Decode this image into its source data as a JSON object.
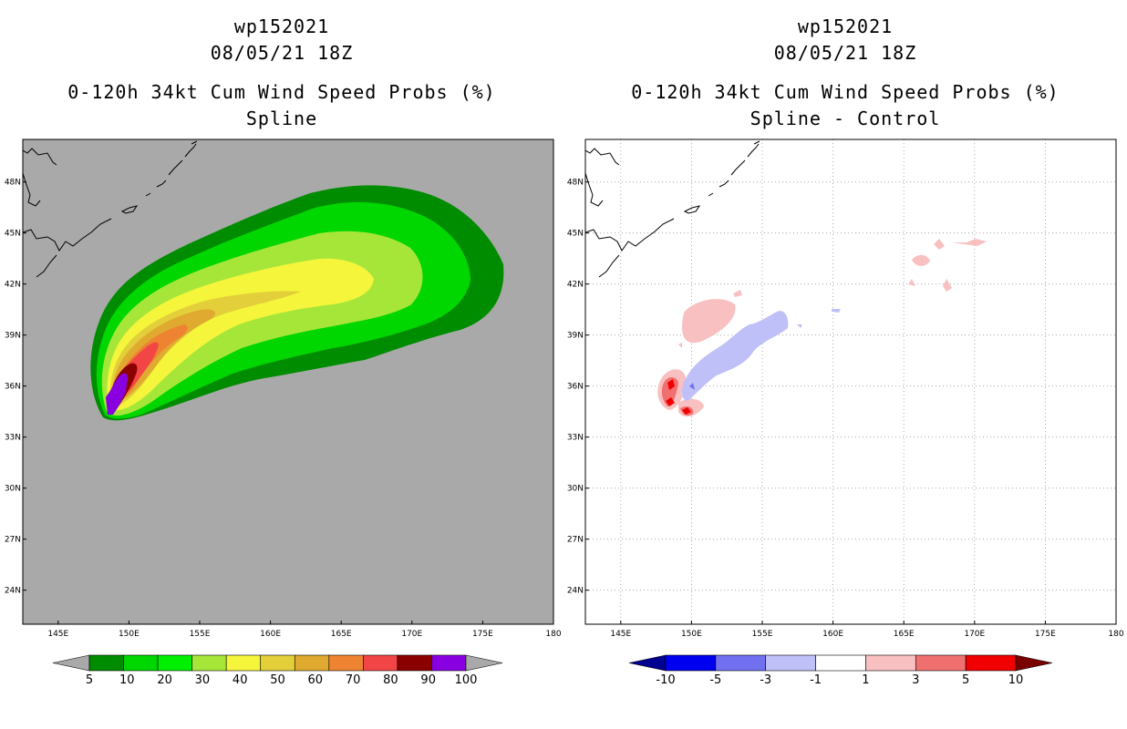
{
  "panels": [
    {
      "id": "left",
      "title_lines": [
        "wp152021",
        "08/05/21 18Z"
      ],
      "subtitle_lines": [
        "0-120h 34kt Cum Wind Speed Probs (%)",
        "Spline"
      ]
    },
    {
      "id": "right",
      "title_lines": [
        "wp152021",
        "08/05/21 18Z"
      ],
      "subtitle_lines": [
        "0-120h 34kt Cum Wind Speed Probs (%)",
        "Spline - Control"
      ]
    }
  ],
  "chart_data": [
    {
      "type": "heatmap",
      "title": "0-120h 34kt Cum Wind Speed Probs (%) Spline",
      "storm": "wp152021",
      "time": "08/05/21 18Z",
      "x_ticks": [
        "145E",
        "150E",
        "155E",
        "160E",
        "165E",
        "170E",
        "175E",
        "180"
      ],
      "x_values": [
        145,
        150,
        155,
        160,
        165,
        170,
        175,
        180
      ],
      "y_ticks": [
        "24N",
        "27N",
        "30N",
        "33N",
        "36N",
        "39N",
        "42N",
        "45N",
        "48N"
      ],
      "y_values": [
        24,
        27,
        30,
        33,
        36,
        39,
        42,
        45,
        48
      ],
      "xlim": [
        142.5,
        180
      ],
      "ylim": [
        22,
        50.5
      ],
      "background_color": "#a9a9a9",
      "colorbar": {
        "labels": [
          "5",
          "10",
          "20",
          "30",
          "40",
          "50",
          "60",
          "70",
          "80",
          "90",
          "100"
        ],
        "colors": [
          "#008c00",
          "#00d600",
          "#00ee00",
          "#a6e639",
          "#f5f53c",
          "#e3cf3a",
          "#e0aa31",
          "#ee8431",
          "#f24545",
          "#8b0000",
          "#8800e0"
        ],
        "end_colors": [
          "#a9a9a9",
          "#a9a9a9"
        ]
      }
    },
    {
      "type": "heatmap",
      "title": "0-120h 34kt Cum Wind Speed Probs (%) Spline - Control",
      "storm": "wp152021",
      "time": "08/05/21 18Z",
      "x_ticks": [
        "145E",
        "150E",
        "155E",
        "160E",
        "165E",
        "170E",
        "175E",
        "180"
      ],
      "x_values": [
        145,
        150,
        155,
        160,
        165,
        170,
        175,
        180
      ],
      "y_ticks": [
        "24N",
        "27N",
        "30N",
        "33N",
        "36N",
        "39N",
        "42N",
        "45N",
        "48N"
      ],
      "y_values": [
        24,
        27,
        30,
        33,
        36,
        39,
        42,
        45,
        48
      ],
      "xlim": [
        142.5,
        180
      ],
      "ylim": [
        22,
        50.5
      ],
      "grid": true,
      "background_color": "#ffffff",
      "colorbar": {
        "labels": [
          "-10",
          "-5",
          "-3",
          "-1",
          "1",
          "3",
          "5",
          "10"
        ],
        "colors": [
          "#0000f0",
          "#7070f0",
          "#c0c0f8",
          "#ffffff",
          "#f8c0c0",
          "#f07070",
          "#f00000"
        ],
        "end_colors": [
          "#000090",
          "#7a0000"
        ]
      }
    }
  ]
}
